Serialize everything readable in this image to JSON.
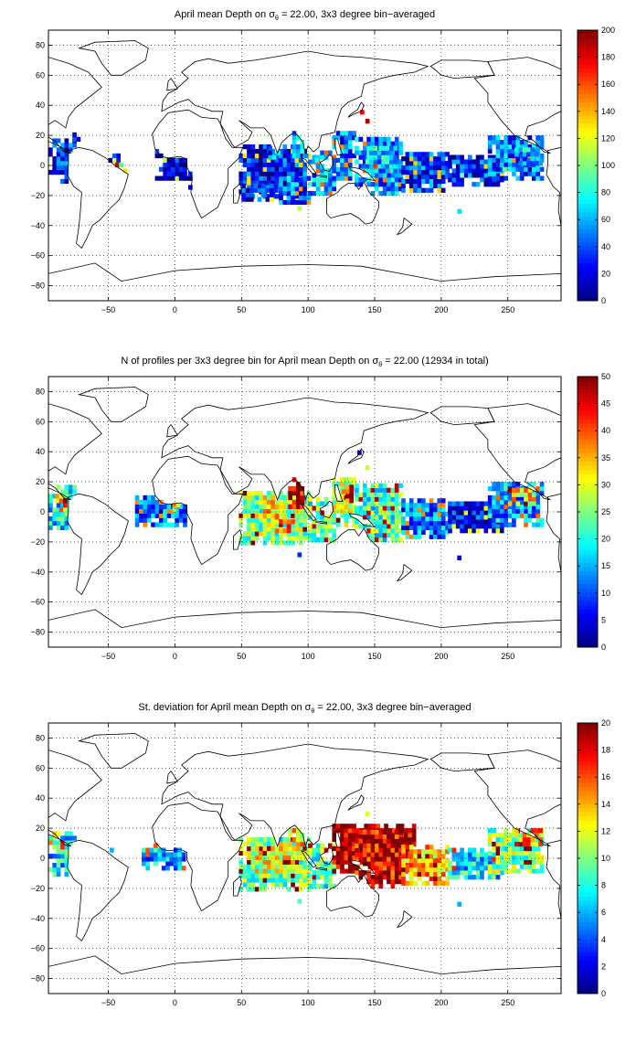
{
  "chart_data": [
    {
      "type": "heatmap",
      "title_main": "April mean Depth on σ",
      "title_sub": "θ",
      "title_rest": " = 22.00, 3x3 degree bin−averaged",
      "xlim": [
        -95,
        290
      ],
      "ylim": [
        -90,
        90
      ],
      "xticks": [
        -50,
        0,
        50,
        100,
        150,
        200,
        250
      ],
      "yticks": [
        80,
        60,
        40,
        20,
        0,
        -20,
        -40,
        -60,
        -80
      ],
      "grid": true,
      "colorbar": {
        "min": 0,
        "max": 200,
        "ticks": [
          0,
          20,
          40,
          60,
          80,
          100,
          120,
          140,
          160,
          180,
          200
        ]
      },
      "regions": [
        {
          "lon": [
            -95,
            -75
          ],
          "lat": [
            -12,
            16
          ],
          "value": 30
        },
        {
          "lon": [
            -80,
            -72
          ],
          "lat": [
            16,
            22
          ],
          "value": 25
        },
        {
          "lon": [
            -50,
            -42
          ],
          "lat": [
            -4,
            6
          ],
          "value": 20
        },
        {
          "lon": [
            -42,
            -36
          ],
          "lat": [
            -8,
            -2
          ],
          "value": 130
        },
        {
          "lon": [
            -45,
            -40
          ],
          "lat": [
            -4,
            2
          ],
          "value": 80
        },
        {
          "lon": [
            -15,
            10
          ],
          "lat": [
            -10,
            12
          ],
          "value": 15
        },
        {
          "lon": [
            10,
            15
          ],
          "lat": [
            -16,
            -2
          ],
          "value": 15
        },
        {
          "lon": [
            48,
            100
          ],
          "lat": [
            -22,
            14
          ],
          "value": 30
        },
        {
          "lon": [
            50,
            80
          ],
          "lat": [
            -24,
            -12
          ],
          "value": 25
        },
        {
          "lon": [
            78,
            100
          ],
          "lat": [
            -26,
            -10
          ],
          "value": 45
        },
        {
          "lon": [
            88,
            98
          ],
          "lat": [
            5,
            22
          ],
          "value": 55
        },
        {
          "lon": [
            70,
            78
          ],
          "lat": [
            4,
            14
          ],
          "value": 50
        },
        {
          "lon": [
            100,
            120
          ],
          "lat": [
            -20,
            8
          ],
          "value": 55
        },
        {
          "lon": [
            118,
            135
          ],
          "lat": [
            -10,
            22
          ],
          "value": 45
        },
        {
          "lon": [
            135,
            170
          ],
          "lat": [
            -20,
            18
          ],
          "value": 50
        },
        {
          "lon": [
            140,
            165
          ],
          "lat": [
            -5,
            12
          ],
          "value": 65
        },
        {
          "lon": [
            170,
            205
          ],
          "lat": [
            -18,
            8
          ],
          "value": 35
        },
        {
          "lon": [
            205,
            245
          ],
          "lat": [
            -14,
            6
          ],
          "value": 30
        },
        {
          "lon": [
            235,
            275
          ],
          "lat": [
            -10,
            18
          ],
          "value": 45
        },
        {
          "lon": [
            255,
            275
          ],
          "lat": [
            0,
            12
          ],
          "value": 60
        }
      ],
      "points": [
        {
          "lon": 139,
          "lat": 34,
          "value": 175
        },
        {
          "lon": 143,
          "lat": 28,
          "value": 190
        },
        {
          "lon": 92,
          "lat": -30,
          "value": 110
        },
        {
          "lon": 214,
          "lat": -8,
          "value": 100
        },
        {
          "lon": 212,
          "lat": -32,
          "value": 70
        },
        {
          "lon": 246,
          "lat": -4,
          "value": 90
        },
        {
          "lon": 105,
          "lat": 2,
          "value": 80
        }
      ]
    },
    {
      "type": "heatmap",
      "title_main": "N of profiles per 3x3 degree bin for April mean Depth on σ",
      "title_sub": "θ",
      "title_rest": " = 22.00 (12934 in total)",
      "xlim": [
        -95,
        290
      ],
      "ylim": [
        -90,
        90
      ],
      "xticks": [
        -50,
        0,
        50,
        100,
        150,
        200,
        250
      ],
      "yticks": [
        80,
        60,
        40,
        20,
        0,
        -20,
        -40,
        -60,
        -80
      ],
      "grid": true,
      "colorbar": {
        "min": 0,
        "max": 50,
        "ticks": [
          0,
          5,
          10,
          15,
          20,
          25,
          30,
          35,
          40,
          45,
          50
        ]
      },
      "regions": [
        {
          "lon": [
            -95,
            -75
          ],
          "lat": [
            -12,
            16
          ],
          "value": 18
        },
        {
          "lon": [
            -90,
            -82
          ],
          "lat": [
            0,
            10
          ],
          "value": 35
        },
        {
          "lon": [
            -55,
            -48
          ],
          "lat": [
            0,
            6
          ],
          "value": 3
        },
        {
          "lon": [
            -30,
            10
          ],
          "lat": [
            -10,
            10
          ],
          "value": 12
        },
        {
          "lon": [
            -5,
            5
          ],
          "lat": [
            0,
            6
          ],
          "value": 30
        },
        {
          "lon": [
            48,
            100
          ],
          "lat": [
            -22,
            14
          ],
          "value": 25
        },
        {
          "lon": [
            60,
            80
          ],
          "lat": [
            -10,
            10
          ],
          "value": 32
        },
        {
          "lon": [
            85,
            98
          ],
          "lat": [
            2,
            22
          ],
          "value": 46
        },
        {
          "lon": [
            75,
            90
          ],
          "lat": [
            -14,
            -2
          ],
          "value": 38
        },
        {
          "lon": [
            100,
            120
          ],
          "lat": [
            -20,
            8
          ],
          "value": 22
        },
        {
          "lon": [
            118,
            135
          ],
          "lat": [
            -10,
            22
          ],
          "value": 28
        },
        {
          "lon": [
            122,
            132
          ],
          "lat": [
            6,
            16
          ],
          "value": 42
        },
        {
          "lon": [
            135,
            170
          ],
          "lat": [
            -20,
            18
          ],
          "value": 22
        },
        {
          "lon": [
            170,
            205
          ],
          "lat": [
            -18,
            8
          ],
          "value": 12
        },
        {
          "lon": [
            205,
            245
          ],
          "lat": [
            -14,
            6
          ],
          "value": 6
        },
        {
          "lon": [
            235,
            275
          ],
          "lat": [
            -10,
            18
          ],
          "value": 14
        },
        {
          "lon": [
            250,
            270
          ],
          "lat": [
            4,
            14
          ],
          "value": 32
        }
      ],
      "points": [
        {
          "lon": 143,
          "lat": 28,
          "value": 28
        },
        {
          "lon": 137,
          "lat": 38,
          "value": 5
        },
        {
          "lon": 92,
          "lat": -30,
          "value": 8
        },
        {
          "lon": 214,
          "lat": -8,
          "value": 4
        },
        {
          "lon": 212,
          "lat": -32,
          "value": 4
        }
      ]
    },
    {
      "type": "heatmap",
      "title_main": "St. deviation for April mean Depth on σ",
      "title_sub": "θ",
      "title_rest": " = 22.00, 3x3 degree bin−averaged",
      "xlim": [
        -95,
        290
      ],
      "ylim": [
        -90,
        90
      ],
      "xticks": [
        -50,
        0,
        50,
        100,
        150,
        200,
        250
      ],
      "yticks": [
        80,
        60,
        40,
        20,
        0,
        -20,
        -40,
        -60,
        -80
      ],
      "grid": true,
      "colorbar": {
        "min": 0,
        "max": 20,
        "ticks": [
          0,
          2,
          4,
          6,
          8,
          10,
          12,
          14,
          16,
          18,
          20
        ]
      },
      "regions": [
        {
          "lon": [
            -95,
            -75
          ],
          "lat": [
            -12,
            16
          ],
          "value": 7
        },
        {
          "lon": [
            -95,
            -88
          ],
          "lat": [
            6,
            16
          ],
          "value": 13
        },
        {
          "lon": [
            -55,
            -48
          ],
          "lat": [
            -2,
            6
          ],
          "value": 5
        },
        {
          "lon": [
            -25,
            10
          ],
          "lat": [
            -8,
            8
          ],
          "value": 6
        },
        {
          "lon": [
            48,
            100
          ],
          "lat": [
            -22,
            14
          ],
          "value": 10
        },
        {
          "lon": [
            60,
            90
          ],
          "lat": [
            -10,
            10
          ],
          "value": 12
        },
        {
          "lon": [
            85,
            98
          ],
          "lat": [
            2,
            22
          ],
          "value": 13
        },
        {
          "lon": [
            100,
            120
          ],
          "lat": [
            -20,
            8
          ],
          "value": 9
        },
        {
          "lon": [
            118,
            180
          ],
          "lat": [
            -10,
            22
          ],
          "value": 19
        },
        {
          "lon": [
            135,
            170
          ],
          "lat": [
            -20,
            18
          ],
          "value": 18
        },
        {
          "lon": [
            170,
            205
          ],
          "lat": [
            -18,
            8
          ],
          "value": 14
        },
        {
          "lon": [
            205,
            245
          ],
          "lat": [
            -14,
            6
          ],
          "value": 7
        },
        {
          "lon": [
            235,
            275
          ],
          "lat": [
            -10,
            18
          ],
          "value": 10
        },
        {
          "lon": [
            255,
            275
          ],
          "lat": [
            8,
            18
          ],
          "value": 15
        }
      ],
      "points": [
        {
          "lon": 143,
          "lat": 28,
          "value": 12
        },
        {
          "lon": 92,
          "lat": -30,
          "value": 9
        },
        {
          "lon": 214,
          "lat": -8,
          "value": 5
        },
        {
          "lon": 212,
          "lat": -32,
          "value": 6
        }
      ]
    }
  ]
}
